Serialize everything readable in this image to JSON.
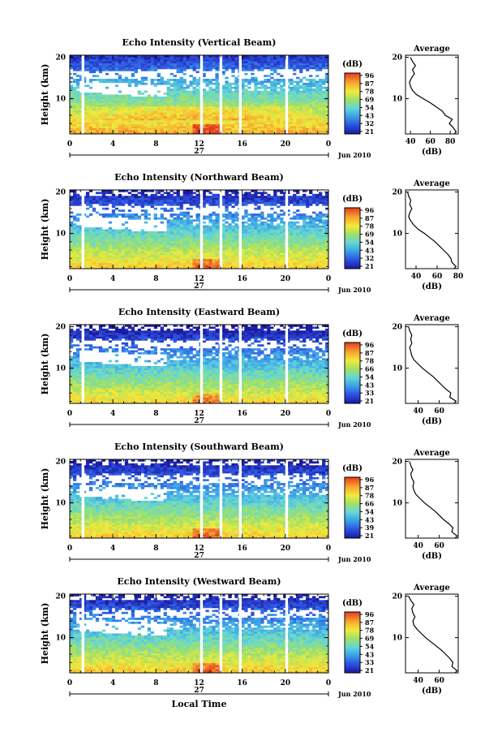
{
  "chart_data": [
    {
      "type": "heatmap",
      "title": "Echo Intensity (Vertical Beam)",
      "ylabel": "Height (km)",
      "y_ticks": [
        "20",
        "10"
      ],
      "x_ticks": [
        "0",
        "4",
        "8",
        "12",
        "16",
        "20",
        "0"
      ],
      "day_label": "27",
      "date_label": "Jun 2010",
      "xlim": [
        0,
        24
      ],
      "ylim": [
        1.5,
        20.5
      ],
      "gaps_hours": [
        [
          1.1,
          1.35
        ],
        [
          12.1,
          12.35
        ],
        [
          13.9,
          14.15
        ],
        [
          15.7,
          15.95
        ],
        [
          20.0,
          20.25
        ]
      ],
      "colorbar": {
        "unit": "(dB)",
        "ticks": [
          "96",
          "87",
          "78",
          "69",
          "54",
          "43",
          "32",
          "21"
        ]
      },
      "profile": {
        "title": "Average",
        "xlabel": "(dB)",
        "x_ticks": [
          "40",
          "60",
          "80"
        ],
        "xlim": [
          35,
          88
        ],
        "y_ticks": [
          "20",
          "10"
        ],
        "height_km": [
          1.5,
          2,
          3,
          4,
          5,
          6,
          7,
          8,
          9,
          10,
          11,
          12,
          13,
          14,
          15,
          16,
          17,
          18,
          19,
          20
        ],
        "db": [
          84,
          86,
          83,
          79,
          82,
          75,
          72,
          66,
          60,
          53,
          46,
          42,
          40,
          39,
          41,
          44,
          42,
          45,
          42,
          40
        ]
      }
    },
    {
      "type": "heatmap",
      "title": "Echo Intensity (Northward Beam)",
      "ylabel": "Height (km)",
      "y_ticks": [
        "20",
        "10"
      ],
      "x_ticks": [
        "0",
        "4",
        "8",
        "12",
        "16",
        "20",
        "0"
      ],
      "day_label": "27",
      "date_label": "Jun 2010",
      "xlim": [
        0,
        24
      ],
      "ylim": [
        1.5,
        20.5
      ],
      "gaps_hours": [
        [
          1.1,
          1.35
        ],
        [
          12.1,
          12.35
        ],
        [
          13.9,
          14.15
        ],
        [
          15.7,
          15.95
        ],
        [
          20.0,
          20.25
        ]
      ],
      "colorbar": {
        "unit": "(dB)",
        "ticks": [
          "96",
          "87",
          "78",
          "69",
          "54",
          "43",
          "32",
          "21"
        ]
      },
      "profile": {
        "title": "Average",
        "xlabel": "(dB)",
        "x_ticks": [
          "40",
          "60",
          "80"
        ],
        "xlim": [
          30,
          80
        ],
        "y_ticks": [
          "20",
          "10"
        ],
        "height_km": [
          1.5,
          2,
          3,
          4,
          5,
          6,
          7,
          8,
          9,
          10,
          11,
          12,
          13,
          14,
          15,
          16,
          17,
          18,
          19,
          20
        ],
        "db": [
          76,
          78,
          74,
          73,
          70,
          66,
          62,
          58,
          53,
          48,
          42,
          38,
          35,
          33,
          34,
          36,
          34,
          35,
          33,
          32
        ]
      }
    },
    {
      "type": "heatmap",
      "title": "Echo Intensity (Eastward Beam)",
      "ylabel": "Height (km)",
      "y_ticks": [
        "20",
        "10"
      ],
      "x_ticks": [
        "0",
        "4",
        "8",
        "12",
        "16",
        "20",
        "0"
      ],
      "day_label": "27",
      "date_label": "Jun 2010",
      "xlim": [
        0,
        24
      ],
      "ylim": [
        1.5,
        20.5
      ],
      "gaps_hours": [
        [
          1.1,
          1.35
        ],
        [
          12.1,
          12.35
        ],
        [
          13.9,
          14.15
        ],
        [
          15.7,
          15.95
        ],
        [
          20.0,
          20.25
        ]
      ],
      "colorbar": {
        "unit": "(dB)",
        "ticks": [
          "96",
          "87",
          "78",
          "66",
          "54",
          "43",
          "33",
          "21"
        ]
      },
      "profile": {
        "title": "Average",
        "xlabel": "(dB)",
        "x_ticks": [
          "40",
          "60"
        ],
        "xlim": [
          28,
          78
        ],
        "y_ticks": [
          "20",
          "10"
        ],
        "height_km": [
          1.5,
          2,
          3,
          4,
          5,
          6,
          7,
          8,
          9,
          10,
          11,
          12,
          13,
          14,
          15,
          16,
          17,
          18,
          19,
          20
        ],
        "db": [
          74,
          76,
          70,
          71,
          66,
          62,
          58,
          54,
          49,
          44,
          40,
          36,
          34,
          33,
          32,
          34,
          33,
          34,
          32,
          31
        ]
      }
    },
    {
      "type": "heatmap",
      "title": "Echo Intensity (Southward Beam)",
      "ylabel": "Height (km)",
      "y_ticks": [
        "20",
        "10"
      ],
      "x_ticks": [
        "0",
        "4",
        "8",
        "12",
        "16",
        "20",
        "0"
      ],
      "day_label": "27",
      "date_label": "Jun 2010",
      "xlim": [
        0,
        24
      ],
      "ylim": [
        1.5,
        20.5
      ],
      "gaps_hours": [
        [
          1.1,
          1.35
        ],
        [
          12.1,
          12.35
        ],
        [
          13.9,
          14.15
        ],
        [
          15.7,
          15.95
        ],
        [
          20.0,
          20.25
        ]
      ],
      "colorbar": {
        "unit": "(dB)",
        "ticks": [
          "96",
          "87",
          "78",
          "66",
          "54",
          "43",
          "39",
          "21"
        ]
      },
      "profile": {
        "title": "Average",
        "xlabel": "(dB)",
        "x_ticks": [
          "40",
          "60"
        ],
        "xlim": [
          28,
          78
        ],
        "y_ticks": [
          "20",
          "10"
        ],
        "height_km": [
          1.5,
          2,
          3,
          4,
          5,
          6,
          7,
          8,
          9,
          10,
          11,
          12,
          13,
          14,
          15,
          16,
          17,
          18,
          19,
          20
        ],
        "db": [
          75,
          77,
          72,
          73,
          69,
          64,
          60,
          56,
          51,
          46,
          42,
          38,
          36,
          35,
          36,
          34,
          33,
          35,
          33,
          32
        ]
      }
    },
    {
      "type": "heatmap",
      "title": "Echo Intensity (Westward Beam)",
      "ylabel": "Height (km)",
      "y_ticks": [
        "20",
        "10"
      ],
      "x_ticks": [
        "0",
        "4",
        "8",
        "12",
        "16",
        "20",
        "0"
      ],
      "day_label": "27",
      "date_label": "Jun 2010",
      "xlabel": "Local Time",
      "xlim": [
        0,
        24
      ],
      "ylim": [
        1.5,
        20.5
      ],
      "gaps_hours": [
        [
          1.1,
          1.35
        ],
        [
          12.1,
          12.35
        ],
        [
          13.9,
          14.15
        ],
        [
          15.7,
          15.95
        ],
        [
          20.0,
          20.25
        ]
      ],
      "colorbar": {
        "unit": "(dB)",
        "ticks": [
          "96",
          "87",
          "78",
          "69",
          "54",
          "43",
          "33",
          "21"
        ]
      },
      "profile": {
        "title": "Average",
        "xlabel": "(dB)",
        "x_ticks": [
          "40",
          "60"
        ],
        "xlim": [
          28,
          78
        ],
        "y_ticks": [
          "20",
          "10"
        ],
        "height_km": [
          1.5,
          2,
          3,
          4,
          5,
          6,
          7,
          8,
          9,
          10,
          11,
          12,
          13,
          14,
          15,
          16,
          17,
          18,
          19,
          20
        ],
        "db": [
          75,
          77,
          72,
          73,
          70,
          66,
          62,
          57,
          52,
          47,
          43,
          39,
          36,
          35,
          37,
          35,
          34,
          36,
          33,
          31
        ]
      }
    }
  ]
}
